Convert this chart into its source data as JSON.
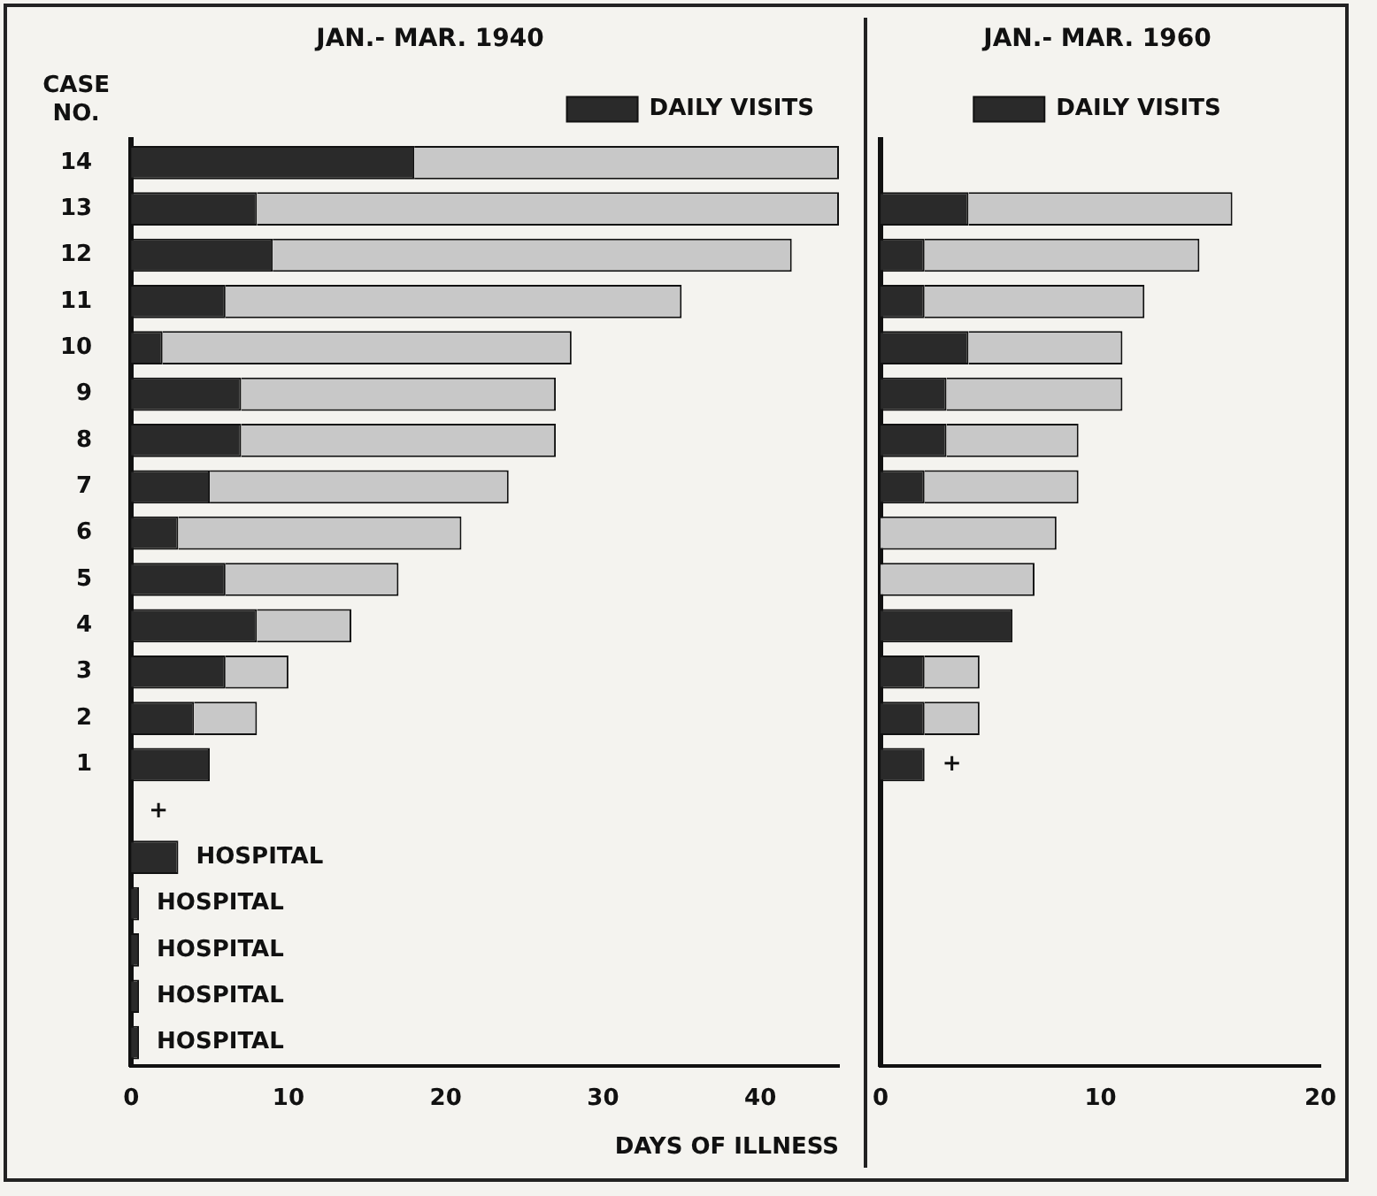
{
  "chart_data": [
    {
      "type": "bar",
      "orientation": "horizontal",
      "stacked": true,
      "title": "JAN.- MAR. 1940",
      "ylabel": "CASE NO.",
      "xlabel": "DAYS OF ILLNESS",
      "legend": "top right",
      "grid": false,
      "categories": [
        "14",
        "13",
        "12",
        "11",
        "10",
        "9",
        "8",
        "7",
        "6",
        "5",
        "4",
        "3",
        "2",
        "1",
        null,
        null,
        null,
        null,
        null,
        null
      ],
      "series": [
        {
          "name": "DAILY VISITS",
          "color": "#2a2a2a",
          "values": [
            18,
            8,
            9,
            6,
            2,
            7,
            7,
            5,
            3,
            6,
            8,
            6,
            4,
            5,
            0,
            3,
            0.5,
            0.5,
            0.5,
            0.5
          ],
          "value_labels": [
            null,
            null,
            null,
            null,
            null,
            null,
            null,
            null,
            null,
            null,
            null,
            null,
            null,
            null,
            "+",
            "HOSPITAL",
            "HOSPITAL",
            "HOSPITAL",
            "HOSPITAL",
            "HOSPITAL"
          ]
        },
        {
          "color": "#c8c8c8",
          "values": [
            27,
            37,
            33,
            29,
            26,
            20,
            20,
            19,
            18,
            11,
            6,
            4,
            4,
            null,
            null,
            null,
            null,
            null,
            null,
            null
          ]
        }
      ],
      "xlim": [
        0,
        45
      ],
      "xticks": [
        0,
        10,
        20,
        30,
        40
      ]
    },
    {
      "type": "bar",
      "orientation": "horizontal",
      "stacked": true,
      "title": "JAN.- MAR. 1960",
      "legend": "top",
      "grid": false,
      "tick_labels": "x",
      "categories": [
        "14",
        "13",
        "12",
        "11",
        "10",
        "9",
        "8",
        "7",
        "6",
        "5",
        "4",
        "3",
        "2",
        "1",
        null,
        null,
        null,
        null,
        null,
        null
      ],
      "series": [
        {
          "name": "DAILY VISITS",
          "color": "#2a2a2a",
          "values": [
            null,
            4,
            2,
            2,
            4,
            3,
            3,
            2,
            0,
            0,
            6,
            2,
            2,
            2,
            null,
            null,
            null,
            null,
            null,
            null
          ],
          "value_labels": [
            null,
            null,
            null,
            null,
            null,
            null,
            null,
            null,
            null,
            null,
            null,
            null,
            null,
            "+",
            null,
            null,
            null,
            null,
            null,
            null
          ]
        },
        {
          "color": "#c8c8c8",
          "values": [
            null,
            12,
            12.5,
            10,
            7,
            8,
            6,
            7,
            8,
            7,
            0,
            2.5,
            2.5,
            null,
            null,
            null,
            null,
            null,
            null,
            null
          ]
        }
      ],
      "xlim": [
        0,
        20
      ],
      "xticks": [
        0,
        10,
        20
      ]
    }
  ]
}
